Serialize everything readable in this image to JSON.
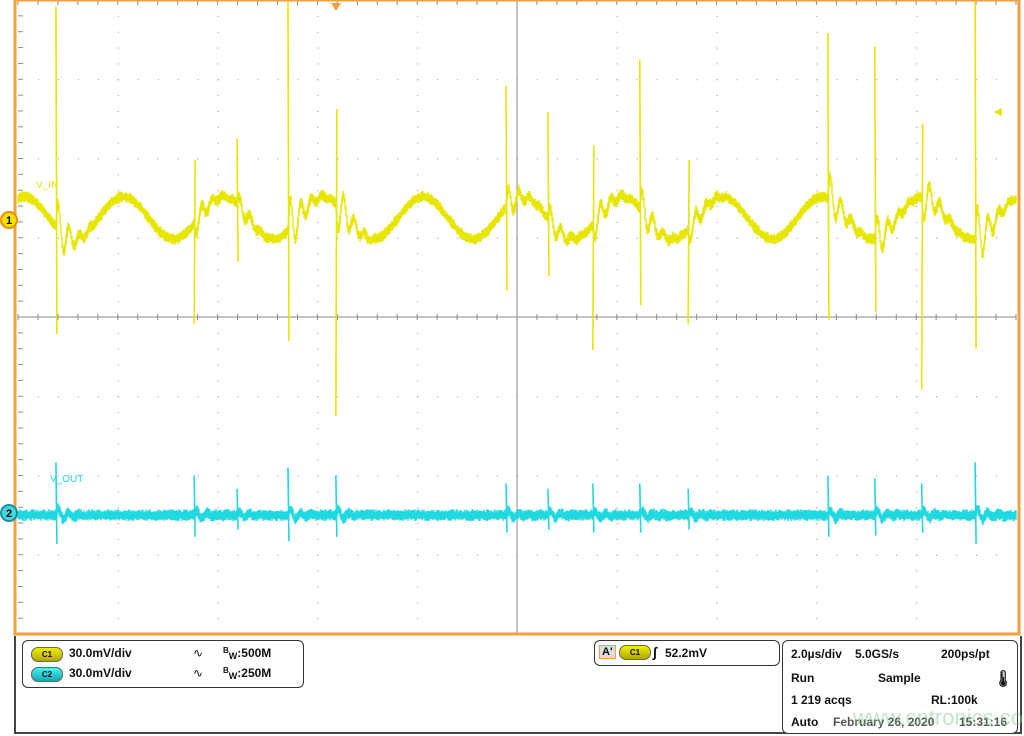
{
  "chart_data": {
    "type": "line",
    "title": "",
    "xlabel": "",
    "ylabel": "",
    "grid": true,
    "x_divisions": 10,
    "y_divisions": 8,
    "time_per_div_us": 2.0,
    "xlim_us": [
      0,
      20
    ],
    "trigger_position_div": 3.2,
    "series": [
      {
        "name": "V_IN",
        "channel": "1",
        "color": "#e6e600",
        "scale_mV_per_div": 30.0,
        "offset_div": 1.25,
        "ripple_period_us": 2.0,
        "ripple_amplitude_mV": 8,
        "spike_times_us": [
          0.76,
          3.53,
          4.39,
          5.41,
          6.37,
          9.78,
          10.62,
          11.52,
          12.46,
          13.43,
          16.23,
          17.17,
          18.11,
          19.18
        ],
        "spike_amplitude_mV": [
          80,
          -40,
          30,
          85,
          -75,
          50,
          40,
          -50,
          60,
          -40,
          70,
          65,
          -65,
          90
        ]
      },
      {
        "name": "V_OUT",
        "channel": "2",
        "color": "#20d8e0",
        "scale_mV_per_div": 30.0,
        "offset_div": -2.5,
        "spike_times_us": [
          0.76,
          3.53,
          4.39,
          5.41,
          6.37,
          9.78,
          10.62,
          11.52,
          12.46,
          13.43,
          16.23,
          17.17,
          18.11,
          19.18
        ],
        "spike_amplitude_mV": [
          20,
          15,
          10,
          18,
          15,
          12,
          10,
          12,
          12,
          10,
          15,
          14,
          12,
          20
        ]
      }
    ]
  },
  "colors": {
    "frame": "#f0a040",
    "ch1": "#e6e600",
    "ch2": "#20d8e0",
    "grid": "#8a8a8a"
  },
  "markers": {
    "ch1": "1",
    "ch2": "2"
  },
  "channels": [
    {
      "badge": "C1",
      "scale": "30.0mV/div",
      "coupling_icon": "ac-coupling-icon",
      "bw_prefix": "B",
      "bw_sub": "W",
      "bw": ":500M"
    },
    {
      "badge": "C2",
      "scale": "30.0mV/div",
      "coupling_icon": "ac-coupling-icon",
      "bw_prefix": "B",
      "bw_sub": "W",
      "bw": ":250M"
    }
  ],
  "trigger": {
    "label": "A'",
    "source": "C1",
    "slope_icon": "rising-edge-icon",
    "level": "52.2mV"
  },
  "acquisition": {
    "timebase": "2.0µs/div",
    "sample_rate": "5.0GS/s",
    "resolution": "200ps/pt",
    "state": "Run",
    "mode": "Sample",
    "acqs": "1 219 acqs",
    "record_length": "RL:100k",
    "trigger_mode": "Auto",
    "date": "February 26, 2020",
    "time": "15:31:16"
  },
  "watermark": "www.cntronics.com"
}
